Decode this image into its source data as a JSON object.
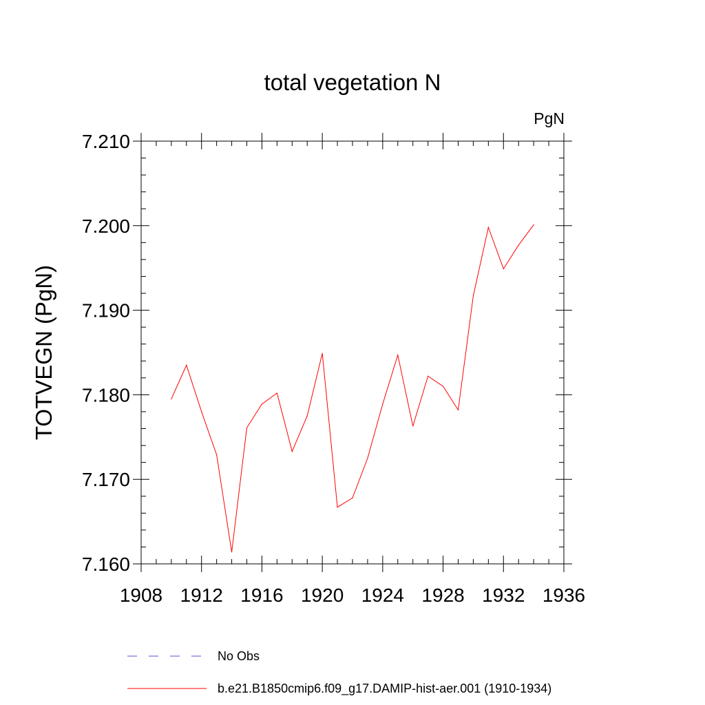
{
  "chart_data": {
    "type": "line",
    "title": "total vegetation N",
    "units_label": "PgN",
    "ylabel": "TOTVEGN  (PgN)",
    "xlabel": "",
    "xlim": [
      1908,
      1936
    ],
    "ylim": [
      7.16,
      7.21
    ],
    "x_ticks": [
      "1908",
      "1912",
      "1916",
      "1920",
      "1924",
      "1928",
      "1932",
      "1936"
    ],
    "y_ticks": [
      "7.160",
      "7.170",
      "7.180",
      "7.190",
      "7.200",
      "7.210"
    ],
    "grid": false,
    "legend_position": "bottom",
    "x": [
      1910,
      1911,
      1912,
      1913,
      1914,
      1915,
      1916,
      1917,
      1918,
      1919,
      1920,
      1921,
      1922,
      1923,
      1924,
      1925,
      1926,
      1927,
      1928,
      1929,
      1930,
      1931,
      1932,
      1933,
      1934
    ],
    "series": [
      {
        "name": "b.e21.B1850cmip6.f09_g17.DAMIP-hist-aer.001 (1910-1934)",
        "color": "#ff0000",
        "style": "solid",
        "values": [
          7.1795,
          7.1835,
          7.178,
          7.1729,
          7.1614,
          7.1761,
          7.1789,
          7.1802,
          7.1733,
          7.1775,
          7.1849,
          7.1667,
          7.1678,
          7.1725,
          7.1789,
          7.1847,
          7.1763,
          7.1822,
          7.181,
          7.1782,
          7.1917,
          7.1998,
          7.1949,
          7.1977,
          7.2001
        ]
      }
    ],
    "legend": [
      {
        "label": "No Obs",
        "color": "#5a4fcf",
        "style": "dashed"
      },
      {
        "label": "b.e21.B1850cmip6.f09_g17.DAMIP-hist-aer.001 (1910-1934)",
        "color": "#ff0000",
        "style": "solid"
      }
    ]
  }
}
